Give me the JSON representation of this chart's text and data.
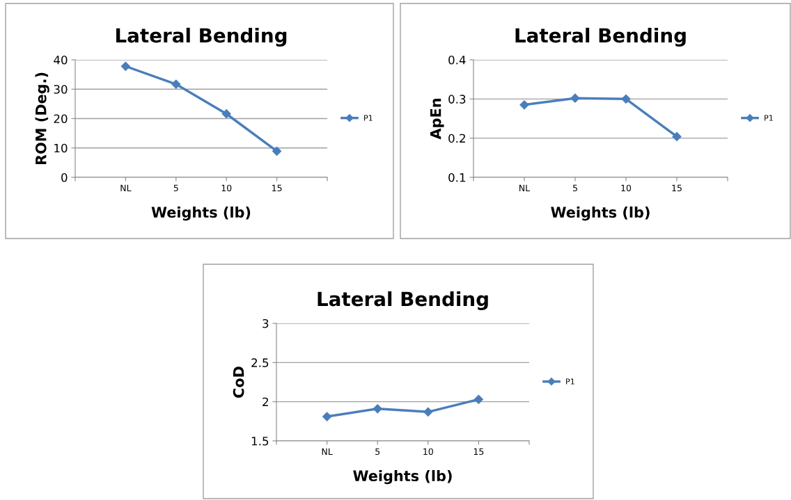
{
  "chart_data": [
    {
      "type": "line",
      "title": "Lateral Bending",
      "xlabel": "Weights (lb)",
      "ylabel": "ROM (Deg.)",
      "categories": [
        null,
        "NL",
        "5",
        "10",
        "15",
        null
      ],
      "series": [
        {
          "name": "P1",
          "color": "#4a7ebb",
          "values": [
            null,
            37.8,
            31.7,
            21.6,
            8.9,
            null
          ]
        }
      ],
      "ylim": [
        0,
        40
      ],
      "yticks": [
        0,
        10,
        20,
        30,
        40
      ],
      "grid": "y",
      "legend": "right",
      "marker": "diamond",
      "line_style": "solid"
    },
    {
      "type": "line",
      "title": "Lateral Bending",
      "xlabel": "Weights (lb)",
      "ylabel": "ApEn",
      "categories": [
        null,
        "NL",
        "5",
        "10",
        "15",
        null
      ],
      "series": [
        {
          "name": "P1",
          "color": "#4a7ebb",
          "values": [
            null,
            0.285,
            0.302,
            0.3,
            0.204,
            null
          ]
        }
      ],
      "ylim": [
        0.1,
        0.4
      ],
      "yticks": [
        0.1,
        0.2,
        0.3,
        0.4
      ],
      "grid": "y",
      "legend": "right",
      "marker": "diamond",
      "line_style": "solid"
    },
    {
      "type": "line",
      "title": "Lateral Bending",
      "xlabel": "Weights (lb)",
      "ylabel": "CoD",
      "categories": [
        null,
        "NL",
        "5",
        "10",
        "15",
        null
      ],
      "series": [
        {
          "name": "P1",
          "color": "#4a7ebb",
          "values": [
            null,
            1.81,
            1.91,
            1.87,
            2.03,
            null
          ]
        }
      ],
      "ylim": [
        1.5,
        3
      ],
      "yticks": [
        1.5,
        2,
        2.5,
        3
      ],
      "grid": "y",
      "legend": "right",
      "marker": "diamond",
      "line_style": "solid"
    }
  ]
}
